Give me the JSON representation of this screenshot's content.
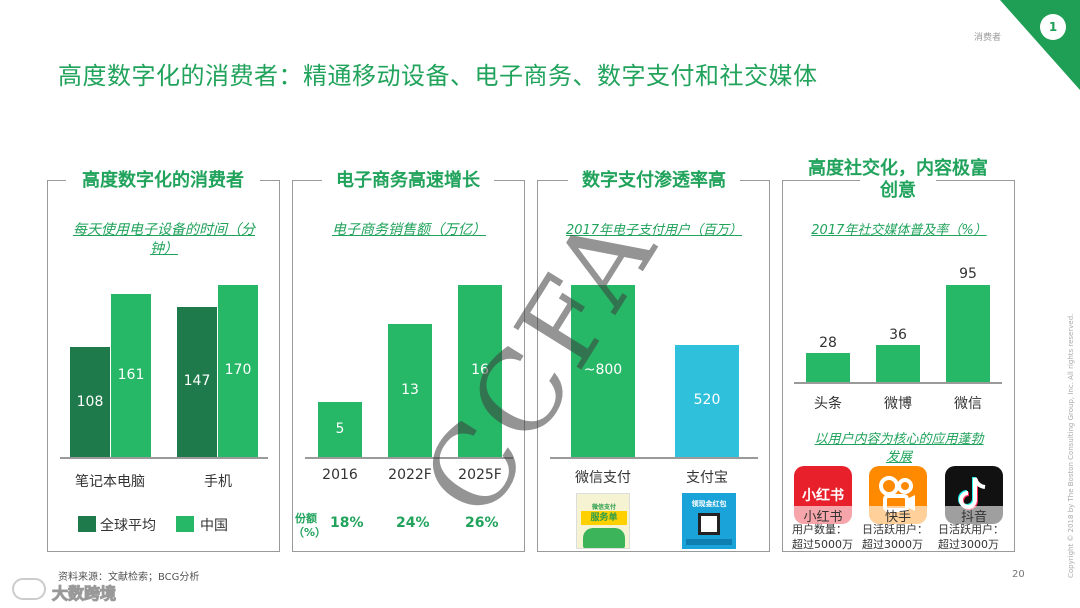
{
  "header": {
    "section_label": "消费者",
    "page_badge": "1"
  },
  "title": "高度数字化的消费者：精通移动设备、电子商务、数字支付和社交媒体",
  "watermark": "CCFA",
  "colors": {
    "dark_green": "#1e7a4a",
    "green": "#27b867",
    "light_blue": "#2fc0dc",
    "accent_green": "#21a35c"
  },
  "panels": {
    "devices": {
      "title": "高度数字化的消费者",
      "subtitle_line1": "每天使用电子设备的时间（分",
      "subtitle_line2": "钟）",
      "legend": {
        "global": "全球平均",
        "china": "中国"
      },
      "categories": [
        "笔记本电脑",
        "手机"
      ],
      "global_values": [
        "108",
        "147"
      ],
      "china_values": [
        "161",
        "170"
      ]
    },
    "ecommerce": {
      "title": "电子商务高速增长",
      "subtitle": "电子商务销售额（万亿）",
      "categories": [
        "2016",
        "2022F",
        "2025F"
      ],
      "values": [
        "5",
        "13",
        "16"
      ],
      "share_label_line1": "份额",
      "share_label_line2": "（%）",
      "shares": [
        "18%",
        "24%",
        "26%"
      ]
    },
    "payment": {
      "title": "数字支付渗透率高",
      "subtitle": "2017年电子支付用户（百万）",
      "categories": [
        "微信支付",
        "支付宝"
      ],
      "values": [
        "~800",
        "520"
      ],
      "promo1_line1": "微信支付",
      "promo1_line2": "服务单",
      "promo2_line1": "领现金红包"
    },
    "social": {
      "title_line1": "高度社交化，内容极富",
      "title_line2": "创意",
      "subtitle": "2017年社交媒体普及率（%）",
      "categories": [
        "头条",
        "微博",
        "微信"
      ],
      "values": [
        "28",
        "36",
        "95"
      ],
      "note_line1": "以用户内容为核心的应用蓬勃",
      "note_line2": "发展",
      "apps": [
        {
          "name": "小红书",
          "logo": "小红书",
          "users_line1": "用户数量：",
          "users_line2": "超过5000万"
        },
        {
          "name": "快手",
          "users_line1": "日活跃用户：",
          "users_line2": "超过3000万"
        },
        {
          "name": "抖音",
          "users_line1": "日活跃用户：",
          "users_line2": "超过3000万"
        }
      ]
    }
  },
  "footer": {
    "source": "资料来源：文献检索；BCG分析",
    "page_number": "20",
    "logo_text": "大数跨境",
    "copyright": "Copyright © 2018 by The Boston Consulting Group, Inc. All rights reserved."
  }
}
